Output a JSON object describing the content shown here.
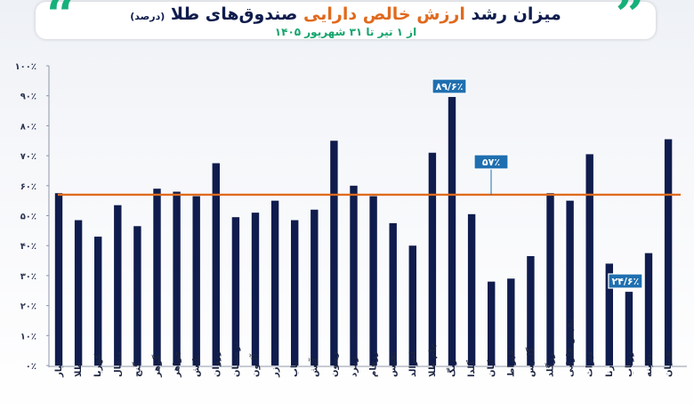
{
  "title": {
    "part1": "میزان رشد",
    "part2": "ارزش خالص دارایی",
    "part3": "صندوق‌های طلا",
    "part4": "(درصد)"
  },
  "subtitle": "از ۱ تیر تا ۳۱ شهریور ۱۴۰۵",
  "colors": {
    "bar": "#0f1c4d",
    "average_line": "#e06a1e",
    "callout": "#1f6fb0",
    "accent": "#16b07a"
  },
  "chart_data": {
    "type": "bar",
    "categories": [
      "عیار",
      "طلا",
      "کهربا",
      "مثقال",
      "گنج",
      "گوهر",
      "جواهر",
      "تابش",
      "زروان",
      "درخشان",
      "آلتون",
      "زر",
      "ناب",
      "آتش",
      "ریتون",
      "زمرد",
      "زرفام",
      "نفیس",
      "امرالد",
      "جام طلا",
      "زنگ",
      "گلدا",
      "لیان",
      "قیراط",
      "گلدیس",
      "زرگلد",
      "نفیس فارابی",
      "میراث",
      "درنا",
      "زرناب",
      "دفینه",
      "همیان"
    ],
    "values": [
      57.5,
      48.5,
      43,
      53.5,
      46.5,
      59,
      58,
      56.5,
      67.5,
      49.5,
      51,
      55,
      48.5,
      52,
      75,
      60,
      56.5,
      47.5,
      40,
      71,
      89.6,
      50.5,
      28,
      29,
      36.5,
      57.5,
      55,
      70.5,
      34,
      24.6,
      37.5,
      75.5
    ],
    "average": 57,
    "ylim": [
      0,
      100
    ],
    "yticks": [
      "۰٪",
      "۱۰٪",
      "۲۰٪",
      "۳۰٪",
      "۴۰٪",
      "۵۰٪",
      "۶۰٪",
      "۷۰٪",
      "۸۰٪",
      "۹۰٪",
      "۱۰۰٪"
    ],
    "callouts": [
      {
        "label": "۸۹/۶٪",
        "index": 20
      },
      {
        "label": "۵۷٪",
        "index": "average"
      },
      {
        "label": "۲۴/۶٪",
        "index": 29
      }
    ],
    "grid": false,
    "legend": "none"
  }
}
